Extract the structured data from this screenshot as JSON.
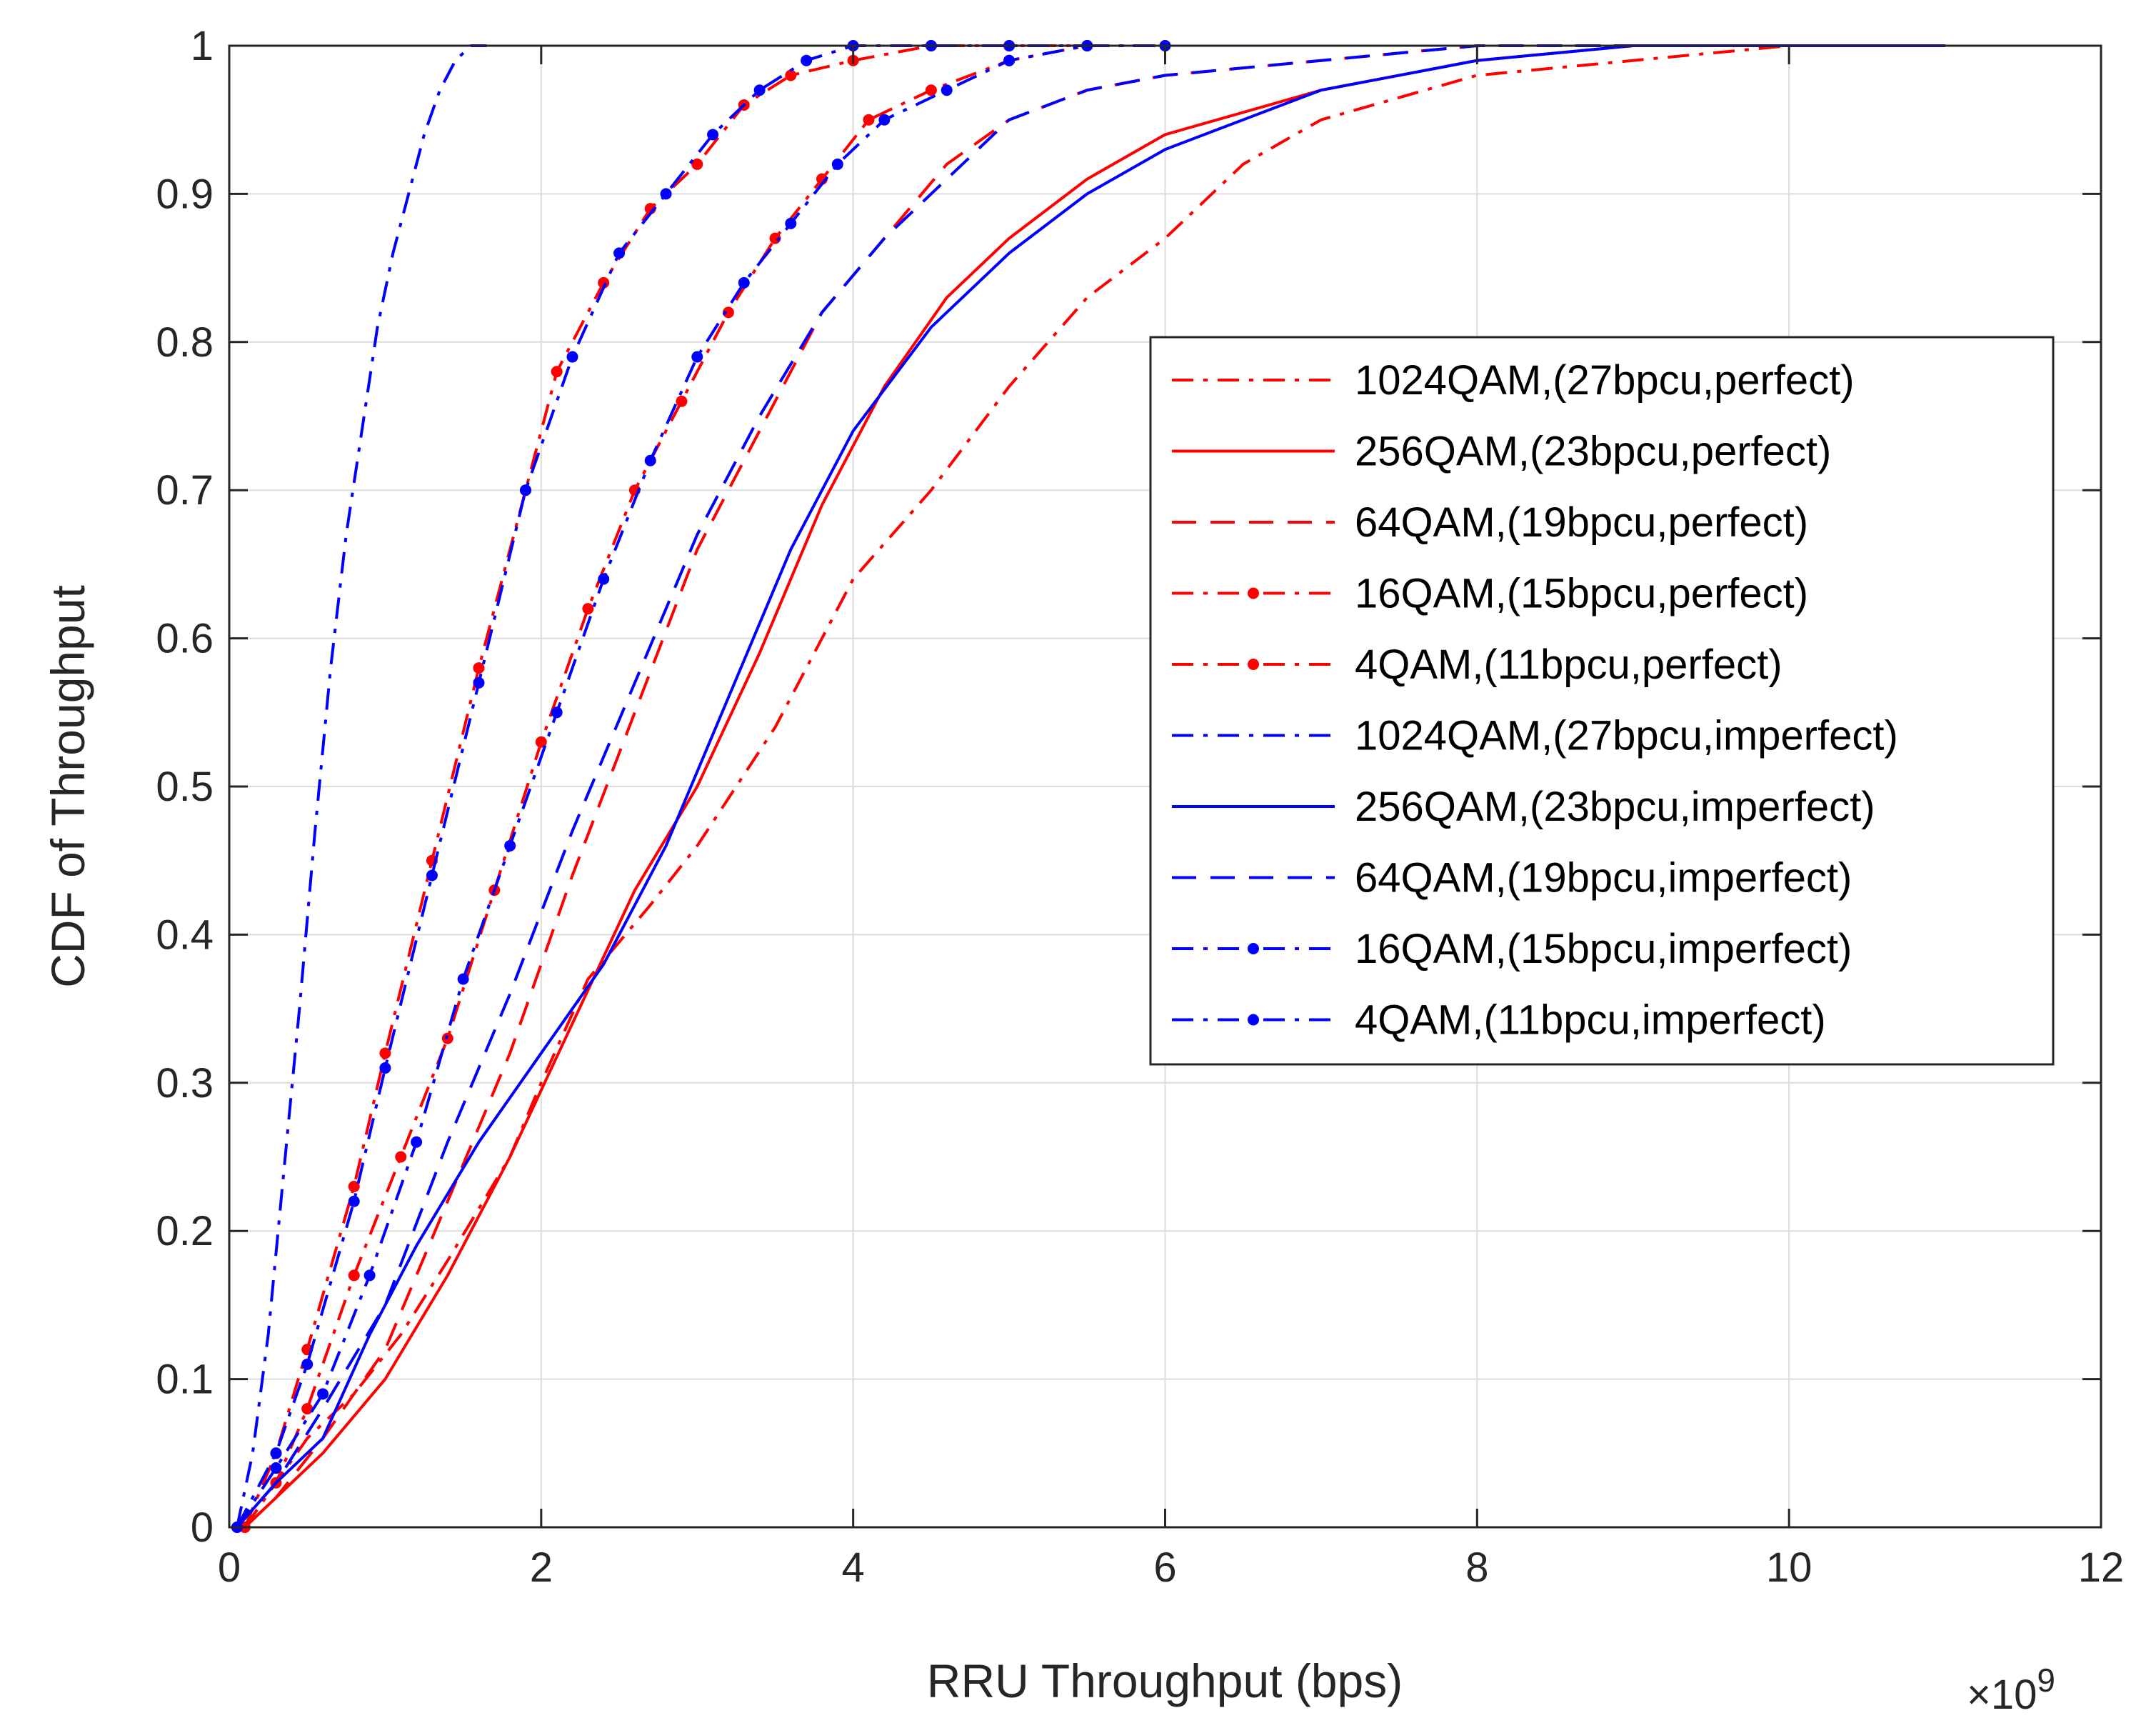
{
  "chart_data": {
    "type": "line",
    "title": "",
    "xlabel": "RRU Throughput (bps)",
    "ylabel": "CDF of Throughput",
    "x_exponent_label": {
      "base": "×10",
      "exp": "9"
    },
    "xlim": [
      0,
      12
    ],
    "ylim": [
      0,
      1
    ],
    "x_scale": 1000000000,
    "grid": true,
    "legend_location": "right",
    "xticks": [
      0,
      2,
      4,
      6,
      8,
      10,
      12
    ],
    "xtick_labels": [
      "0",
      "2",
      "4",
      "6",
      "8",
      "10",
      "12"
    ],
    "yticks": [
      0,
      0.1,
      0.2,
      0.3,
      0.4,
      0.5,
      0.6,
      0.7,
      0.8,
      0.9,
      1
    ],
    "ytick_labels": [
      "0",
      "0.1",
      "0.2",
      "0.3",
      "0.4",
      "0.5",
      "0.6",
      "0.7",
      "0.8",
      "0.9",
      "1"
    ],
    "series": [
      {
        "name": "1024QAM,(27bpcu,perfect)",
        "color": "#ff0000",
        "style": "dashdot",
        "marker": false,
        "x": [
          0.1,
          0.3,
          0.5,
          0.8,
          1.1,
          1.4,
          1.8,
          2.0,
          2.3,
          2.7,
          3.0,
          3.5,
          4.0,
          4.5,
          5.0,
          5.5,
          6.0,
          6.5,
          7.0,
          8.0,
          9.0,
          10.0,
          11.0
        ],
        "y": [
          0.0,
          0.03,
          0.06,
          0.09,
          0.13,
          0.18,
          0.25,
          0.3,
          0.37,
          0.42,
          0.46,
          0.54,
          0.64,
          0.7,
          0.77,
          0.83,
          0.87,
          0.92,
          0.95,
          0.98,
          0.99,
          1.0,
          1.0
        ]
      },
      {
        "name": "256QAM,(23bpcu,perfect)",
        "color": "#ff0000",
        "style": "solid",
        "marker": false,
        "x": [
          0.1,
          0.3,
          0.6,
          1.0,
          1.4,
          1.8,
          2.2,
          2.6,
          3.0,
          3.4,
          3.8,
          4.2,
          4.6,
          5.0,
          5.5,
          6.0,
          7.0,
          8.0,
          9.0,
          10.0,
          11.0
        ],
        "y": [
          0.0,
          0.02,
          0.05,
          0.1,
          0.17,
          0.25,
          0.34,
          0.43,
          0.5,
          0.59,
          0.69,
          0.77,
          0.83,
          0.87,
          0.91,
          0.94,
          0.97,
          0.99,
          1.0,
          1.0,
          1.0
        ]
      },
      {
        "name": "64QAM,(19bpcu,perfect)",
        "color": "#ff0000",
        "style": "dashed",
        "marker": false,
        "x": [
          0.1,
          0.3,
          0.6,
          1.0,
          1.4,
          1.8,
          2.2,
          2.6,
          3.0,
          3.4,
          3.8,
          4.2,
          4.6,
          5.0,
          5.5,
          6.0,
          7.0,
          8.0,
          9.0
        ],
        "y": [
          0.0,
          0.02,
          0.06,
          0.12,
          0.22,
          0.32,
          0.44,
          0.55,
          0.66,
          0.74,
          0.82,
          0.87,
          0.92,
          0.95,
          0.97,
          0.98,
          0.99,
          1.0,
          1.0
        ]
      },
      {
        "name": "16QAM,(15bpcu,perfect)",
        "color": "#ff0000",
        "style": "dashdot",
        "marker": true,
        "x": [
          0.1,
          0.3,
          0.5,
          0.8,
          1.1,
          1.4,
          1.7,
          2.0,
          2.3,
          2.6,
          2.9,
          3.2,
          3.5,
          3.8,
          4.1,
          4.5,
          5.0,
          5.5,
          6.0
        ],
        "y": [
          0.0,
          0.03,
          0.08,
          0.17,
          0.25,
          0.33,
          0.43,
          0.53,
          0.62,
          0.7,
          0.76,
          0.82,
          0.87,
          0.91,
          0.95,
          0.97,
          0.99,
          1.0,
          1.0
        ]
      },
      {
        "name": "4QAM,(11bpcu,perfect)",
        "color": "#ff0000",
        "style": "dashdot",
        "marker": true,
        "x": [
          0.1,
          0.3,
          0.5,
          0.8,
          1.0,
          1.3,
          1.6,
          1.9,
          2.1,
          2.4,
          2.7,
          3.0,
          3.3,
          3.6,
          4.0,
          4.5,
          5.0,
          5.5
        ],
        "y": [
          0.0,
          0.05,
          0.12,
          0.23,
          0.32,
          0.45,
          0.58,
          0.7,
          0.78,
          0.84,
          0.89,
          0.92,
          0.96,
          0.98,
          0.99,
          1.0,
          1.0,
          1.0
        ]
      },
      {
        "name": "1024QAM,(27bpcu,imperfect)",
        "color": "#0000ff",
        "style": "dashdot",
        "marker": false,
        "x": [
          0.05,
          0.15,
          0.25,
          0.35,
          0.45,
          0.55,
          0.65,
          0.75,
          0.85,
          0.95,
          1.05,
          1.15,
          1.25,
          1.35,
          1.45,
          1.55,
          1.65
        ],
        "y": [
          0.0,
          0.05,
          0.13,
          0.24,
          0.35,
          0.47,
          0.58,
          0.67,
          0.74,
          0.81,
          0.86,
          0.9,
          0.94,
          0.97,
          0.99,
          1.0,
          1.0
        ]
      },
      {
        "name": "256QAM,(23bpcu,imperfect)",
        "color": "#0000ff",
        "style": "solid",
        "marker": false,
        "x": [
          0.05,
          0.3,
          0.6,
          0.9,
          1.2,
          1.6,
          2.0,
          2.4,
          2.8,
          3.2,
          3.6,
          4.0,
          4.5,
          5.0,
          5.5,
          6.0,
          7.0,
          8.0,
          9.0,
          10.0,
          11.0
        ],
        "y": [
          0.0,
          0.03,
          0.06,
          0.13,
          0.19,
          0.26,
          0.32,
          0.38,
          0.46,
          0.56,
          0.66,
          0.74,
          0.81,
          0.86,
          0.9,
          0.93,
          0.97,
          0.99,
          1.0,
          1.0,
          1.0
        ]
      },
      {
        "name": "64QAM,(19bpcu,imperfect)",
        "color": "#0000ff",
        "style": "dashed",
        "marker": false,
        "x": [
          0.05,
          0.3,
          0.6,
          1.0,
          1.4,
          1.8,
          2.2,
          2.6,
          3.0,
          3.4,
          3.8,
          4.2,
          4.6,
          5.0,
          5.5,
          6.0,
          7.0,
          8.0,
          9.0
        ],
        "y": [
          0.0,
          0.03,
          0.08,
          0.15,
          0.26,
          0.36,
          0.47,
          0.57,
          0.67,
          0.75,
          0.82,
          0.87,
          0.91,
          0.95,
          0.97,
          0.98,
          0.99,
          1.0,
          1.0
        ]
      },
      {
        "name": "16QAM,(15bpcu,imperfect)",
        "color": "#0000ff",
        "style": "dashdot",
        "marker": true,
        "x": [
          0.05,
          0.3,
          0.6,
          0.9,
          1.2,
          1.5,
          1.8,
          2.1,
          2.4,
          2.7,
          3.0,
          3.3,
          3.6,
          3.9,
          4.2,
          4.6,
          5.0,
          5.5,
          6.0
        ],
        "y": [
          0.0,
          0.04,
          0.09,
          0.17,
          0.26,
          0.37,
          0.46,
          0.55,
          0.64,
          0.72,
          0.79,
          0.84,
          0.88,
          0.92,
          0.95,
          0.97,
          0.99,
          1.0,
          1.0
        ]
      },
      {
        "name": "4QAM,(11bpcu,imperfect)",
        "color": "#0000ff",
        "style": "dashdot",
        "marker": true,
        "x": [
          0.05,
          0.3,
          0.5,
          0.8,
          1.0,
          1.3,
          1.6,
          1.9,
          2.2,
          2.5,
          2.8,
          3.1,
          3.4,
          3.7,
          4.0,
          4.5,
          5.0,
          5.5
        ],
        "y": [
          0.0,
          0.05,
          0.11,
          0.22,
          0.31,
          0.44,
          0.57,
          0.7,
          0.79,
          0.86,
          0.9,
          0.94,
          0.97,
          0.99,
          1.0,
          1.0,
          1.0,
          1.0
        ]
      }
    ]
  }
}
